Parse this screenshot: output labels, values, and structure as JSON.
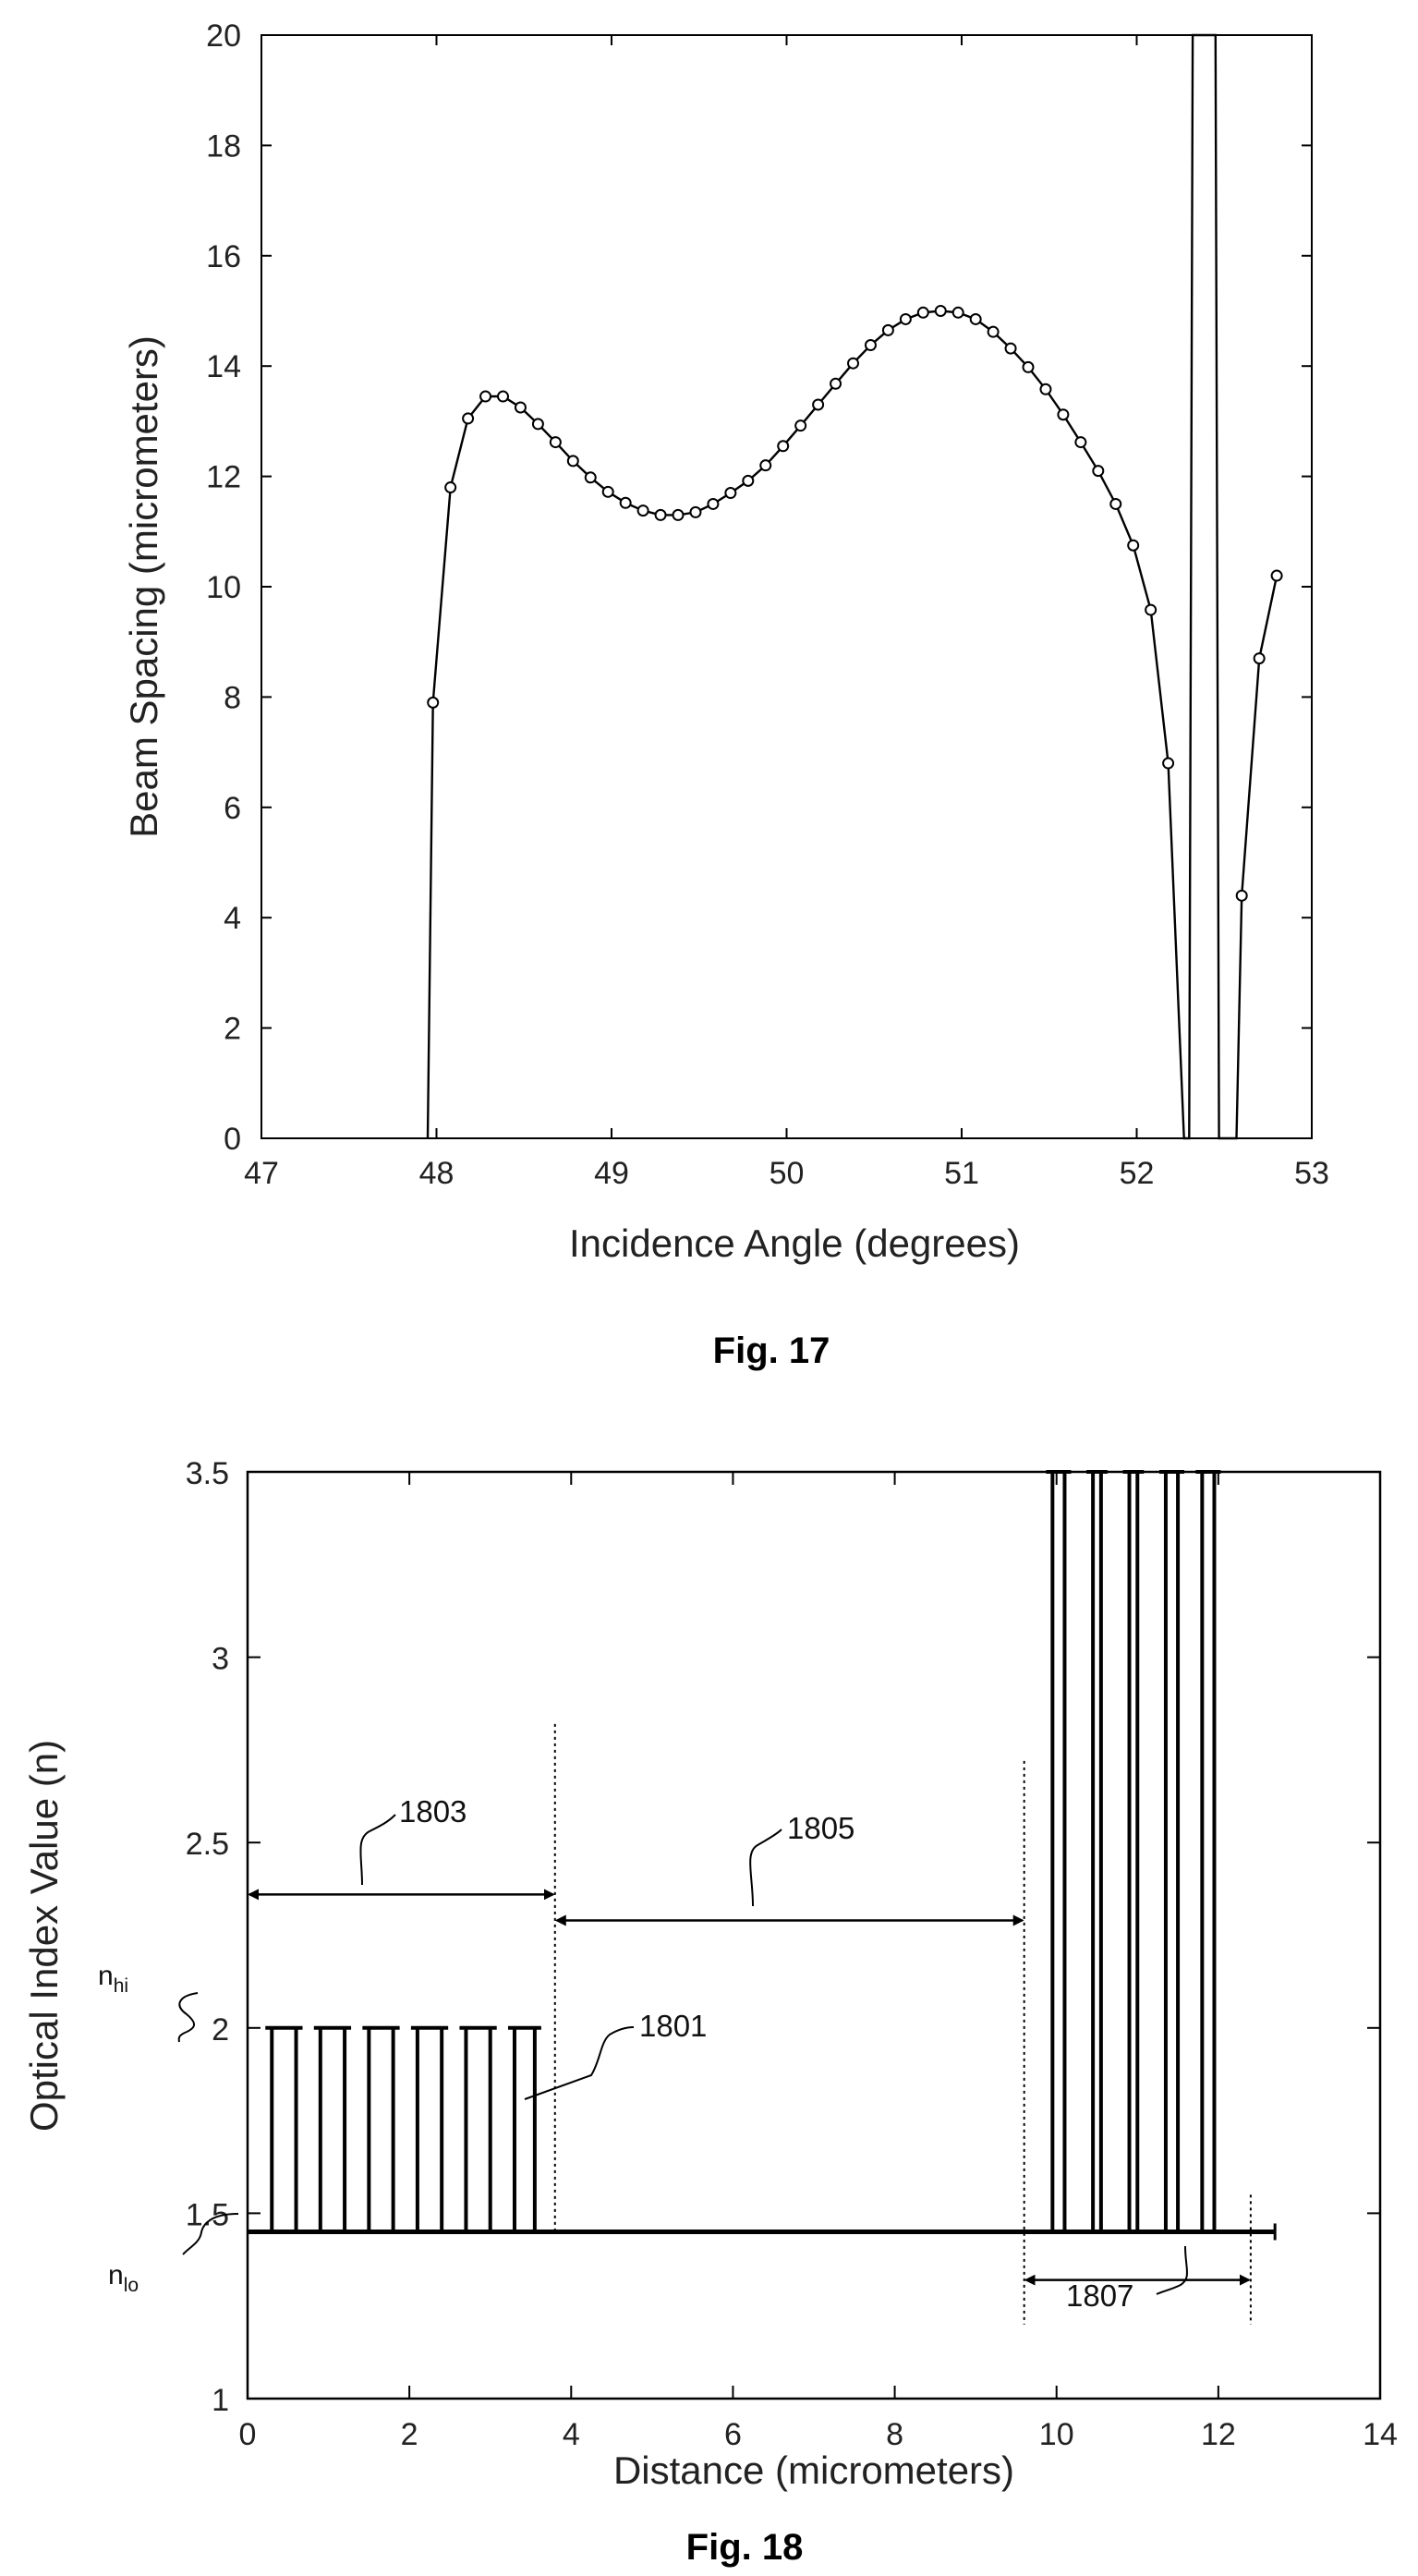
{
  "chart_data": [
    {
      "type": "line",
      "xlabel": "Incidence Angle (degrees)",
      "ylabel": "Beam Spacing (micrometers)",
      "xlim": [
        47,
        53
      ],
      "ylim": [
        0,
        20
      ],
      "x_ticks": [
        47,
        48,
        49,
        50,
        51,
        52,
        53
      ],
      "y_ticks": [
        0,
        2,
        4,
        6,
        8,
        10,
        12,
        14,
        16,
        18,
        20
      ],
      "grid": false,
      "series": [
        {
          "marker": "circle",
          "x": [
            47.95,
            47.98,
            48.08,
            48.18,
            48.28,
            48.38,
            48.48,
            48.58,
            48.68,
            48.78,
            48.88,
            48.98,
            49.08,
            49.18,
            49.28,
            49.38,
            49.48,
            49.58,
            49.68,
            49.78,
            49.88,
            49.98,
            50.08,
            50.18,
            50.28,
            50.38,
            50.48,
            50.58,
            50.68,
            50.78,
            50.88,
            50.98,
            51.08,
            51.18,
            51.28,
            51.38,
            51.48,
            51.58,
            51.68,
            51.78,
            51.88,
            51.98,
            52.08,
            52.18,
            52.27,
            52.3,
            52.32,
            52.45,
            52.47,
            52.57,
            52.6,
            52.7,
            52.8
          ],
          "y": [
            0,
            7.9,
            11.8,
            13.05,
            13.45,
            13.45,
            13.25,
            12.95,
            12.62,
            12.28,
            11.98,
            11.72,
            11.52,
            11.38,
            11.3,
            11.3,
            11.35,
            11.5,
            11.7,
            11.92,
            12.2,
            12.55,
            12.92,
            13.3,
            13.68,
            14.05,
            14.38,
            14.65,
            14.85,
            14.97,
            15.0,
            14.97,
            14.85,
            14.62,
            14.32,
            13.98,
            13.58,
            13.12,
            12.62,
            12.1,
            11.5,
            10.75,
            9.58,
            6.8,
            0,
            0,
            20,
            20,
            0,
            0,
            4.4,
            8.7,
            10.2
          ],
          "marker_mask": [
            0,
            1,
            1,
            1,
            1,
            1,
            1,
            1,
            1,
            1,
            1,
            1,
            1,
            1,
            1,
            1,
            1,
            1,
            1,
            1,
            1,
            1,
            1,
            1,
            1,
            1,
            1,
            1,
            1,
            1,
            1,
            1,
            1,
            1,
            1,
            1,
            1,
            1,
            1,
            1,
            1,
            1,
            1,
            1,
            0,
            0,
            0,
            0,
            0,
            0,
            1,
            1,
            1
          ]
        }
      ]
    },
    {
      "type": "line",
      "xlabel": "Distance (micrometers)",
      "ylabel": "Optical Index Value (n)",
      "xlim": [
        0,
        14
      ],
      "ylim": [
        1,
        3.5
      ],
      "x_ticks": [
        0,
        2,
        4,
        6,
        8,
        10,
        12,
        14
      ],
      "y_ticks": [
        1,
        1.5,
        2,
        2.5,
        3,
        3.5
      ],
      "y_tick_labels": [
        "1",
        "1.5",
        "2",
        "2.5",
        "3",
        "3.5"
      ],
      "grid": false,
      "baseline_n": 1.45,
      "baseline_x": [
        0,
        12.7
      ],
      "section_1801_pulses": [
        {
          "x1": 0.3,
          "x2": 0.6,
          "n": 2
        },
        {
          "x1": 0.9,
          "x2": 1.2,
          "n": 2
        },
        {
          "x1": 1.5,
          "x2": 1.8,
          "n": 2
        },
        {
          "x1": 2.1,
          "x2": 2.4,
          "n": 2
        },
        {
          "x1": 2.7,
          "x2": 3.0,
          "n": 2
        },
        {
          "x1": 3.3,
          "x2": 3.55,
          "n": 2
        }
      ],
      "section_1807_pulses": [
        {
          "x1": 9.95,
          "x2": 10.1,
          "n": 3.5
        },
        {
          "x1": 10.45,
          "x2": 10.55,
          "n": 3.5
        },
        {
          "x1": 10.9,
          "x2": 11.0,
          "n": 3.5
        },
        {
          "x1": 11.35,
          "x2": 11.5,
          "n": 3.5
        },
        {
          "x1": 11.8,
          "x2": 11.95,
          "n": 3.5
        }
      ],
      "dividers": [
        {
          "x": 3.8,
          "n_top": 2.82
        },
        {
          "x": 9.6,
          "n_top": 2.72
        },
        {
          "x": 12.4,
          "n_top": 1.55
        }
      ],
      "spans": [
        {
          "label": "1803",
          "x1": 0,
          "x2": 3.8,
          "n": 2.36
        },
        {
          "label": "1805",
          "x1": 3.8,
          "x2": 9.6,
          "n": 2.29
        },
        {
          "label": "1807",
          "x1": 9.6,
          "x2": 12.4,
          "n": 1.32
        }
      ],
      "level_labels": {
        "hi_main": "n",
        "hi_sub": "hi",
        "lo_main": "n",
        "lo_sub": "lo"
      },
      "ref_1801": "1801",
      "ref_1803": "1803",
      "ref_1805": "1805",
      "ref_1807": "1807"
    }
  ],
  "captions": {
    "fig17": "Fig. 17",
    "fig18": "Fig. 18"
  }
}
